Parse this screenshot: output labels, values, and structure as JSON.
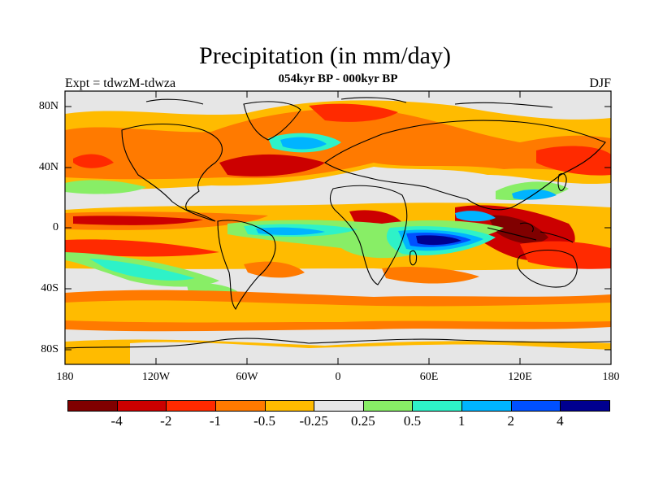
{
  "title": "Precipitation (in mm/day)",
  "subtitle": "054kyr BP - 000kyr BP",
  "left_label": "Expt = tdwzM-tdwza",
  "right_label": "DJF",
  "lat_ticks": [
    "80N",
    "40N",
    "0",
    "40S",
    "80S"
  ],
  "lon_ticks": [
    "180",
    "120W",
    "60W",
    "0",
    "60E",
    "120E",
    "180"
  ],
  "colorbar": {
    "colors": [
      "#800000",
      "#cc0000",
      "#ff2a00",
      "#ff7a00",
      "#ffbb00",
      "#e6e6e6",
      "#88ee66",
      "#2ef2c8",
      "#00b4ff",
      "#0050ff",
      "#000090"
    ],
    "labels": [
      "-4",
      "-2",
      "-1",
      "-0.5",
      "-0.25",
      "0.25",
      "0.5",
      "1",
      "2",
      "4"
    ]
  },
  "background_color": "#e6e6e6"
}
